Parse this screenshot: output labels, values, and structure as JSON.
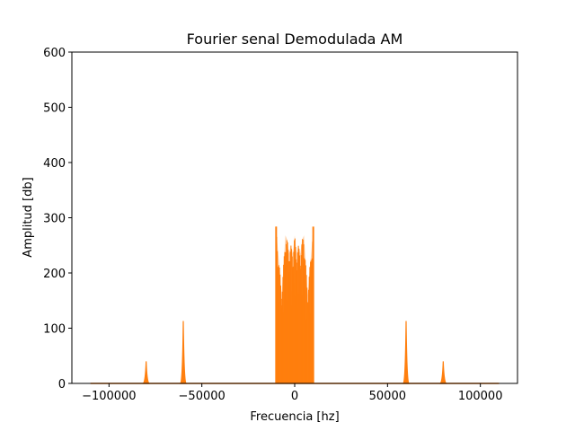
{
  "chart_data": {
    "type": "line",
    "title": "Fourier senal Demodulada AM",
    "xlabel": "Frecuencia [hz]",
    "ylabel": "Amplitud [db]",
    "xlim": [
      -120000,
      120000
    ],
    "ylim": [
      0,
      600
    ],
    "x_ticks": [
      -100000,
      -50000,
      0,
      50000,
      100000
    ],
    "x_tick_labels": [
      "−100000",
      "−50000",
      "0",
      "50000",
      "100000"
    ],
    "y_ticks": [
      0,
      100,
      200,
      300,
      400,
      500,
      600
    ],
    "y_tick_labels": [
      "0",
      "100",
      "200",
      "300",
      "400",
      "500",
      "600"
    ],
    "grid": false,
    "line_color": "#ff7f0e",
    "x_range": [
      -110000,
      110000
    ],
    "baseline_value": 0,
    "peaks": [
      {
        "x": -80000,
        "y": 40
      },
      {
        "x": -60000,
        "y": 113
      },
      {
        "x": 60000,
        "y": 113
      },
      {
        "x": 80000,
        "y": 40
      }
    ],
    "central_band": {
      "x_start": -10000,
      "x_end": 10000,
      "envelope": [
        {
          "x": -10000,
          "y": 284
        },
        {
          "x": -9000,
          "y": 240
        },
        {
          "x": -8000,
          "y": 205
        },
        {
          "x": -7000,
          "y": 160
        },
        {
          "x": -6000,
          "y": 215
        },
        {
          "x": -5000,
          "y": 268
        },
        {
          "x": -4000,
          "y": 260
        },
        {
          "x": -3000,
          "y": 235
        },
        {
          "x": -2000,
          "y": 250
        },
        {
          "x": -1000,
          "y": 235
        },
        {
          "x": 0,
          "y": 268
        },
        {
          "x": 1000,
          "y": 235
        },
        {
          "x": 2000,
          "y": 250
        },
        {
          "x": 3000,
          "y": 235
        },
        {
          "x": 4000,
          "y": 260
        },
        {
          "x": 5000,
          "y": 268
        },
        {
          "x": 6000,
          "y": 215
        },
        {
          "x": 7000,
          "y": 160
        },
        {
          "x": 8000,
          "y": 205
        },
        {
          "x": 9000,
          "y": 240
        },
        {
          "x": 10000,
          "y": 284
        }
      ]
    }
  }
}
